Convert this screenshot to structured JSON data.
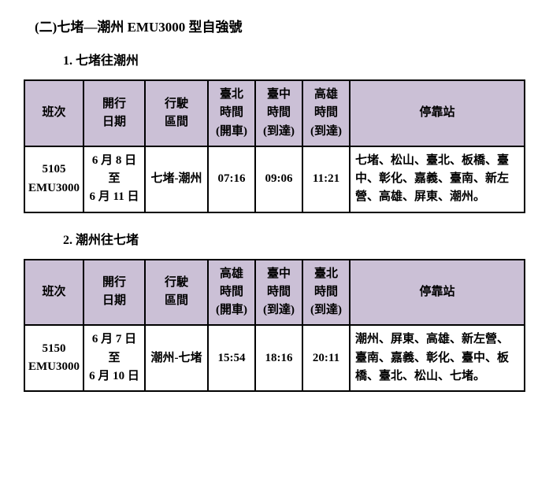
{
  "section_title": "(二)七堵—潮州 EMU3000 型自強號",
  "table1": {
    "subtitle": "1. 七堵往潮州",
    "headers": {
      "train": "班次",
      "date": "開行\n日期",
      "route": "行駛\n區間",
      "t1": "臺北\n時間\n(開車)",
      "t2": "臺中\n時間\n(到達)",
      "t3": "高雄\n時間\n(到達)",
      "stops": "停靠站"
    },
    "row": {
      "train": "5105\nEMU3000",
      "date": "6 月 8 日\n至\n6 月 11 日",
      "route": "七堵-潮州",
      "t1": "07:16",
      "t2": "09:06",
      "t3": "11:21",
      "stops": "七堵、松山、臺北、板橋、臺中、彰化、嘉義、臺南、新左營、高雄、屏東、潮州。"
    }
  },
  "table2": {
    "subtitle": "2. 潮州往七堵",
    "headers": {
      "train": "班次",
      "date": "開行\n日期",
      "route": "行駛\n區間",
      "t1": "高雄\n時間\n(開車)",
      "t2": "臺中\n時間\n(到達)",
      "t3": "臺北\n時間\n(到達)",
      "stops": "停靠站"
    },
    "row": {
      "train": "5150\nEMU3000",
      "date": "6 月 7 日\n至\n6 月 10 日",
      "route": "潮州-七堵",
      "t1": "15:54",
      "t2": "18:16",
      "t3": "20:11",
      "stops": "潮州、屏東、高雄、新左營、臺南、嘉義、彰化、臺中、板橋、臺北、松山、七堵。"
    }
  },
  "colors": {
    "header_bg": "#cbc0d6",
    "border": "#000000",
    "page_bg": "#ffffff",
    "text": "#000000"
  }
}
